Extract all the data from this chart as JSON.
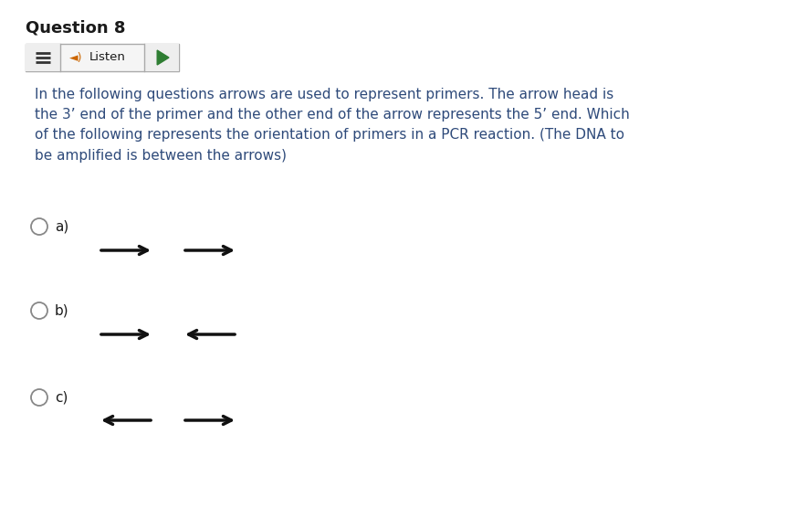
{
  "title": "Question 8",
  "title_fontsize": 13,
  "body_text": "In the following questions arrows are used to represent primers. The arrow head is\nthe 3’ end of the primer and the other end of the arrow represents the 5’ end. Which\nof the following represents the orientation of primers in a PCR reaction. (The DNA to\nbe amplified is between the arrows)",
  "body_fontsize": 11,
  "body_color": "#2e4a7a",
  "text_color": "#1a1a1a",
  "bg_color": "#ffffff",
  "options": [
    "a)",
    "b)",
    "c)"
  ],
  "option_fontsize": 11,
  "arrow_color": "#111111",
  "play_color": "#2e7d32",
  "radio_circle_color": "#888888",
  "listen_text": "◄︎) Listen",
  "speaker_color": "#cc6600",
  "hamburger_color": "#333333"
}
